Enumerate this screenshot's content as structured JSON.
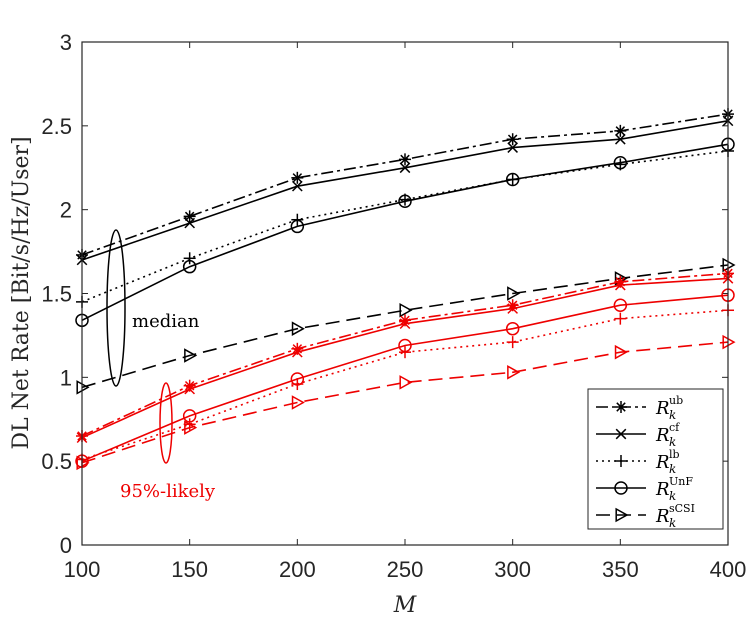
{
  "chart_data": {
    "type": "line",
    "title": "",
    "xlabel": "M",
    "ylabel": "DL Net Rate [Bit/s/Hz/User]",
    "xlim": [
      100,
      400
    ],
    "ylim": [
      0,
      3
    ],
    "x": [
      100,
      150,
      200,
      250,
      300,
      350,
      400
    ],
    "xticks": [
      "100",
      "150",
      "200",
      "250",
      "300",
      "350",
      "400"
    ],
    "yticks": [
      "0",
      "0.5",
      "1",
      "1.5",
      "2",
      "2.5",
      "3"
    ],
    "colors": {
      "median": "#000000",
      "likely95": "#ee0000"
    },
    "legend": {
      "position": "bottom-right",
      "entries": [
        {
          "base": "R",
          "sup": "ub",
          "sub": "k",
          "dash": "dashdot",
          "marker": "asterisk"
        },
        {
          "base": "R",
          "sup": "cf",
          "sub": "k",
          "dash": "solid",
          "marker": "x"
        },
        {
          "base": "R",
          "sup": "lb",
          "sub": "k",
          "dash": "dotted",
          "marker": "plus"
        },
        {
          "base": "R",
          "sup": "UnF",
          "sub": "k",
          "dash": "solid",
          "marker": "circle"
        },
        {
          "base": "R",
          "sup": "sCSI",
          "sub": "k",
          "dash": "dashed",
          "marker": "triangle"
        }
      ]
    },
    "annotations": [
      {
        "text": "median",
        "group": "median"
      },
      {
        "text": "95%-likely",
        "group": "likely95"
      }
    ],
    "series": [
      {
        "name": "R_k^ub median",
        "group": "median",
        "dash": "dashdot",
        "marker": "asterisk",
        "values": [
          1.73,
          1.96,
          2.19,
          2.3,
          2.42,
          2.47,
          2.57
        ]
      },
      {
        "name": "R_k^cf median",
        "group": "median",
        "dash": "solid",
        "marker": "x",
        "values": [
          1.7,
          1.92,
          2.14,
          2.25,
          2.37,
          2.42,
          2.53
        ]
      },
      {
        "name": "R_k^lb median",
        "group": "median",
        "dash": "dotted",
        "marker": "plus",
        "values": [
          1.45,
          1.71,
          1.94,
          2.06,
          2.18,
          2.27,
          2.35
        ]
      },
      {
        "name": "R_k^UnF median",
        "group": "median",
        "dash": "solid",
        "marker": "circle",
        "values": [
          1.34,
          1.66,
          1.9,
          2.05,
          2.18,
          2.28,
          2.39
        ]
      },
      {
        "name": "R_k^sCSI median",
        "group": "median",
        "dash": "dashed",
        "marker": "triangle",
        "values": [
          0.94,
          1.13,
          1.29,
          1.4,
          1.5,
          1.59,
          1.67
        ]
      },
      {
        "name": "R_k^ub 95%-likely",
        "group": "likely95",
        "dash": "dashdot",
        "marker": "asterisk",
        "values": [
          0.65,
          0.95,
          1.17,
          1.34,
          1.43,
          1.57,
          1.62
        ]
      },
      {
        "name": "R_k^cf 95%-likely",
        "group": "likely95",
        "dash": "solid",
        "marker": "x",
        "values": [
          0.64,
          0.93,
          1.15,
          1.32,
          1.41,
          1.55,
          1.59
        ]
      },
      {
        "name": "R_k^lb 95%-likely",
        "group": "likely95",
        "dash": "dotted",
        "marker": "plus",
        "values": [
          0.51,
          0.72,
          0.96,
          1.15,
          1.21,
          1.35,
          1.4
        ]
      },
      {
        "name": "R_k^UnF 95%-likely",
        "group": "likely95",
        "dash": "solid",
        "marker": "circle",
        "values": [
          0.5,
          0.77,
          0.99,
          1.19,
          1.29,
          1.43,
          1.49
        ]
      },
      {
        "name": "R_k^sCSI 95%-likely",
        "group": "likely95",
        "dash": "dashed",
        "marker": "triangle",
        "values": [
          0.49,
          0.7,
          0.85,
          0.97,
          1.03,
          1.15,
          1.21
        ]
      }
    ]
  }
}
